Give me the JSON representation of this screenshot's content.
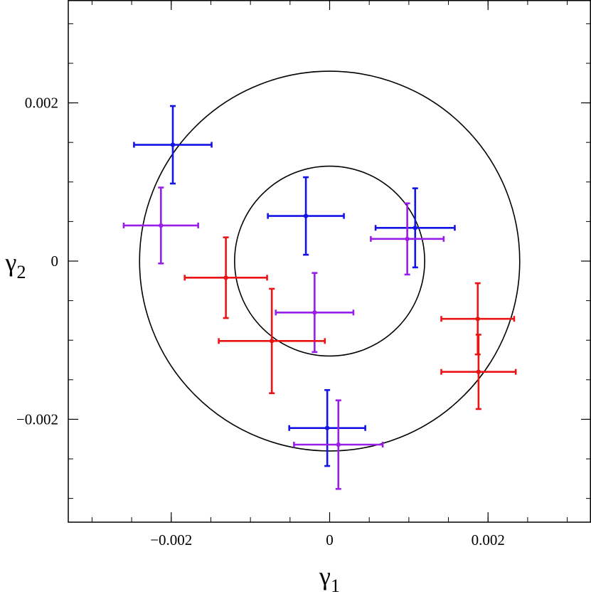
{
  "chart_data": {
    "type": "scatter",
    "title": "",
    "xlabel": "γ",
    "xlabel_sub": "1",
    "ylabel": "γ",
    "ylabel_sub": "2",
    "xlim": [
      -0.0033,
      0.0033
    ],
    "ylim": [
      -0.0033,
      0.0033
    ],
    "x_ticks": [
      {
        "value": -0.002,
        "label": "−0.002"
      },
      {
        "value": 0,
        "label": "0"
      },
      {
        "value": 0.002,
        "label": "0.002"
      }
    ],
    "y_ticks": [
      {
        "value": 0.002,
        "label": "0.002"
      },
      {
        "value": 0,
        "label": "0"
      },
      {
        "value": -0.002,
        "label": "−0.002"
      }
    ],
    "minor_tick_step": 0.0005,
    "grid": false,
    "legend": "none",
    "circles": [
      {
        "cx": 0,
        "cy": 0,
        "r": 0.0012,
        "color": "#000000"
      },
      {
        "cx": 0,
        "cy": 0,
        "r": 0.0024,
        "color": "#000000"
      }
    ],
    "series": [
      {
        "color": "#1414e6",
        "points": [
          {
            "x": -0.00198,
            "y": 0.00147,
            "xerr": 0.00049,
            "yerr": 0.00049
          },
          {
            "x": -0.0003,
            "y": 0.00057,
            "xerr": 0.00048,
            "yerr": 0.00049
          },
          {
            "x": 0.00108,
            "y": 0.00042,
            "xerr": 0.0005,
            "yerr": 0.0005
          },
          {
            "x": -3e-05,
            "y": -0.00211,
            "xerr": 0.00048,
            "yerr": 0.00048
          }
        ]
      },
      {
        "color": "#9a1eea",
        "points": [
          {
            "x": -0.00213,
            "y": 0.00045,
            "xerr": 0.00047,
            "yerr": 0.00048
          },
          {
            "x": 0.00098,
            "y": 0.00028,
            "xerr": 0.00046,
            "yerr": 0.00045
          },
          {
            "x": -0.00019,
            "y": -0.00065,
            "xerr": 0.00049,
            "yerr": 0.0005
          },
          {
            "x": 0.00011,
            "y": -0.00232,
            "xerr": 0.00056,
            "yerr": 0.00056
          }
        ]
      },
      {
        "color": "#eb1414",
        "points": [
          {
            "x": -0.00131,
            "y": -0.00021,
            "xerr": 0.00052,
            "yerr": 0.00051
          },
          {
            "x": -0.00073,
            "y": -0.00101,
            "xerr": 0.00067,
            "yerr": 0.00066
          },
          {
            "x": 0.00187,
            "y": -0.00073,
            "xerr": 0.00046,
            "yerr": 0.00045
          },
          {
            "x": 0.00188,
            "y": -0.0014,
            "xerr": 0.00047,
            "yerr": 0.00047
          }
        ]
      }
    ]
  }
}
